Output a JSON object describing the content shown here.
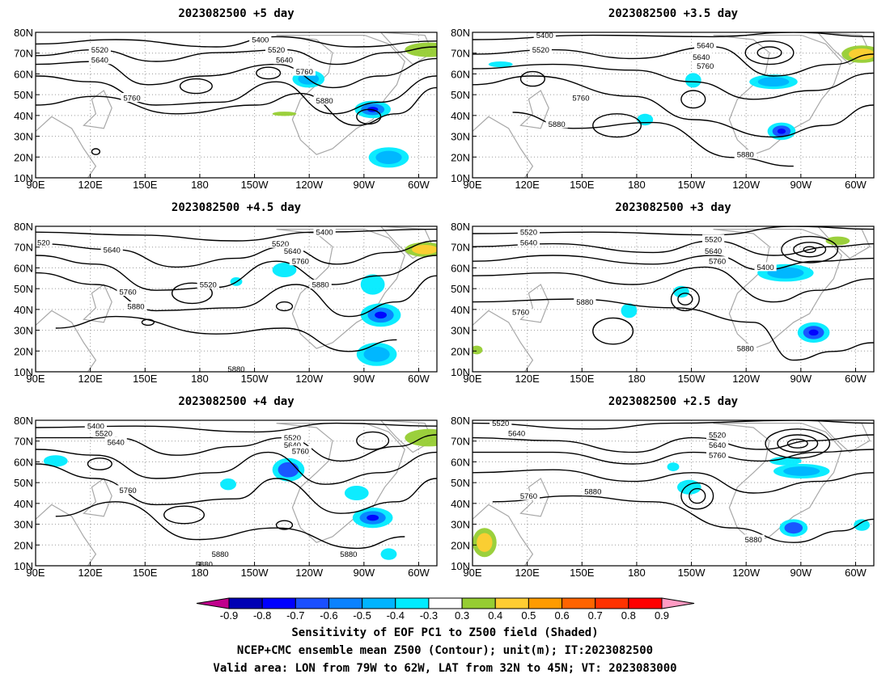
{
  "panels": [
    {
      "title": "2023082500 +5 day",
      "contour_labels": [
        "5400",
        "5520",
        "5520",
        "5640",
        "5640",
        "5760",
        "5760",
        "5880"
      ]
    },
    {
      "title": "2023082500 +3.5 day",
      "contour_labels": [
        "5400",
        "5640",
        "5520",
        "5640",
        "5760",
        "5760",
        "5880",
        "5880"
      ]
    },
    {
      "title": "2023082500 +4.5 day",
      "contour_labels": [
        "520",
        "5640",
        "5400",
        "5520",
        "5640",
        "5760",
        "5760",
        "5520",
        "5880",
        "5880",
        "5880"
      ]
    },
    {
      "title": "2023082500 +3 day",
      "contour_labels": [
        "5520",
        "5640",
        "5520",
        "5640",
        "5760",
        "5400",
        "5880",
        "5760",
        "5880"
      ]
    },
    {
      "title": "2023082500 +4 day",
      "contour_labels": [
        "5400",
        "5520",
        "5640",
        "5520",
        "5640",
        "5760",
        "5760",
        "5880",
        "5880",
        "5880"
      ]
    },
    {
      "title": "2023082500 +2.5 day",
      "contour_labels": [
        "5520",
        "5640",
        "5520",
        "5640",
        "5760",
        "5760",
        "5880",
        "5880"
      ]
    }
  ],
  "axes": {
    "lat_ticks": [
      "80N",
      "70N",
      "60N",
      "50N",
      "40N",
      "30N",
      "20N",
      "10N"
    ],
    "lon_ticks": [
      "90E",
      "120E",
      "150E",
      "180",
      "150W",
      "120W",
      "90W",
      "60W"
    ]
  },
  "colorbar": {
    "levels": [
      "-0.9",
      "-0.8",
      "-0.7",
      "-0.6",
      "-0.5",
      "-0.4",
      "-0.3",
      "0.3",
      "0.4",
      "0.5",
      "0.6",
      "0.7",
      "0.8",
      "0.9"
    ],
    "colors": [
      "#c0008c",
      "#0000b4",
      "#0000ff",
      "#1a4fff",
      "#0a82ff",
      "#00b4ff",
      "#00ebff",
      "#ffffff",
      "#96cd32",
      "#ffcd32",
      "#ff9b00",
      "#ff6400",
      "#ff3200",
      "#ff0000",
      "#ff9bc3"
    ]
  },
  "caption": {
    "line1": "Sensitivity of EOF PC1 to Z500 field (Shaded)",
    "line2": "NCEP+CMC ensemble mean Z500 (Contour); unit(m); IT:2023082500",
    "line3": "Valid area: LON from 79W to 62W, LAT from 32N to 45N; VT: 2023083000"
  }
}
